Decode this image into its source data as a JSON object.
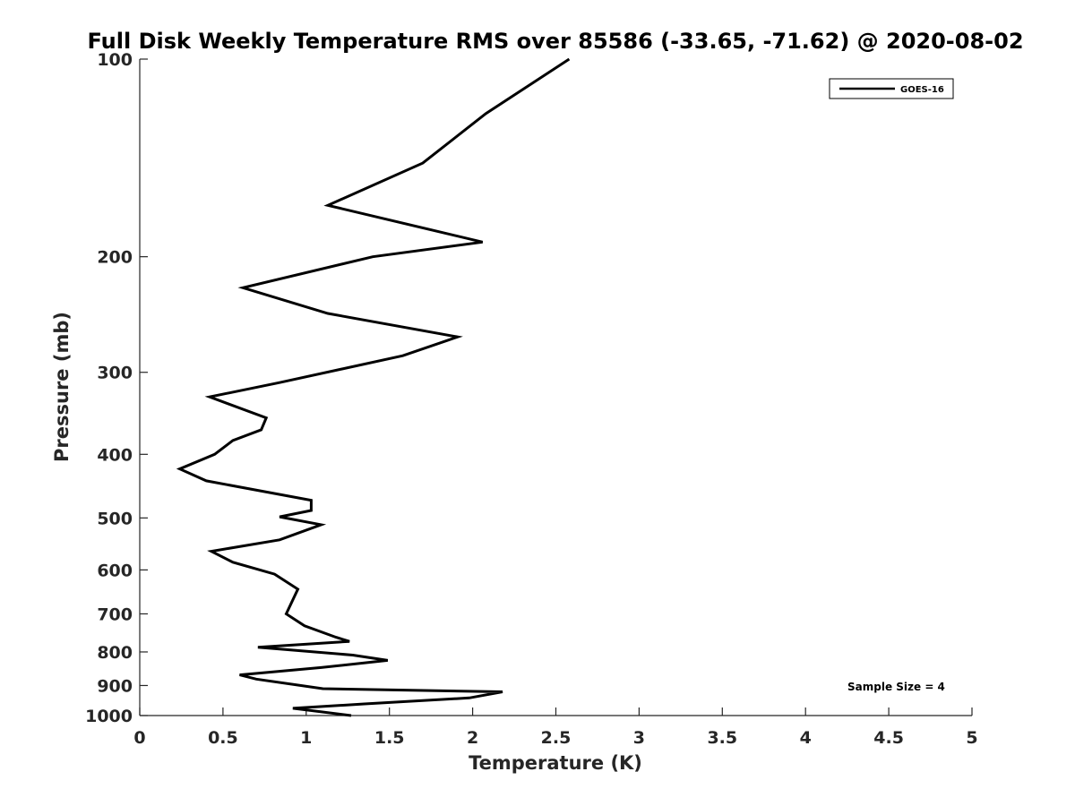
{
  "chart_data": {
    "type": "line",
    "title": "Full Disk Weekly Temperature RMS over 85586 (-33.65, -71.62) @ 2020-08-02",
    "xlabel": "Temperature (K)",
    "ylabel": "Pressure (mb)",
    "xlim": [
      0,
      5
    ],
    "ylim": [
      100,
      1000
    ],
    "y_scale": "log",
    "y_reversed": true,
    "grid": false,
    "legend_position": "top-right",
    "x_ticks": [
      "0",
      "0.5",
      "1",
      "1.5",
      "2",
      "2.5",
      "3",
      "3.5",
      "4",
      "4.5",
      "5"
    ],
    "y_ticks": [
      "100",
      "200",
      "300",
      "400",
      "500",
      "600",
      "700",
      "800",
      "900",
      "1000"
    ],
    "series": [
      {
        "name": "GOES-16",
        "color": "#000000",
        "points": [
          [
            2.58,
            100
          ],
          [
            2.08,
            121
          ],
          [
            1.7,
            144
          ],
          [
            1.13,
            167
          ],
          [
            2.06,
            190
          ],
          [
            1.4,
            200
          ],
          [
            0.62,
            223
          ],
          [
            1.13,
            244
          ],
          [
            1.91,
            265
          ],
          [
            1.58,
            283
          ],
          [
            0.84,
            311
          ],
          [
            0.42,
            327
          ],
          [
            0.76,
            352
          ],
          [
            0.73,
            367
          ],
          [
            0.56,
            381
          ],
          [
            0.45,
            400
          ],
          [
            0.24,
            421
          ],
          [
            0.4,
            439
          ],
          [
            1.03,
            470
          ],
          [
            1.03,
            487
          ],
          [
            0.84,
            498
          ],
          [
            1.09,
            512
          ],
          [
            0.84,
            540
          ],
          [
            0.43,
            562
          ],
          [
            0.56,
            584
          ],
          [
            0.81,
            609
          ],
          [
            0.95,
            642
          ],
          [
            0.88,
            700
          ],
          [
            0.99,
            730
          ],
          [
            1.18,
            760
          ],
          [
            1.26,
            771
          ],
          [
            0.71,
            787
          ],
          [
            1.28,
            809
          ],
          [
            1.49,
            824
          ],
          [
            1.09,
            845
          ],
          [
            0.6,
            867
          ],
          [
            0.7,
            880
          ],
          [
            1.1,
            910
          ],
          [
            2.18,
            920
          ],
          [
            1.98,
            940
          ],
          [
            1.35,
            960
          ],
          [
            0.92,
            975
          ],
          [
            1.27,
            1000
          ]
        ]
      }
    ],
    "annotation": "Sample Size = 4"
  }
}
